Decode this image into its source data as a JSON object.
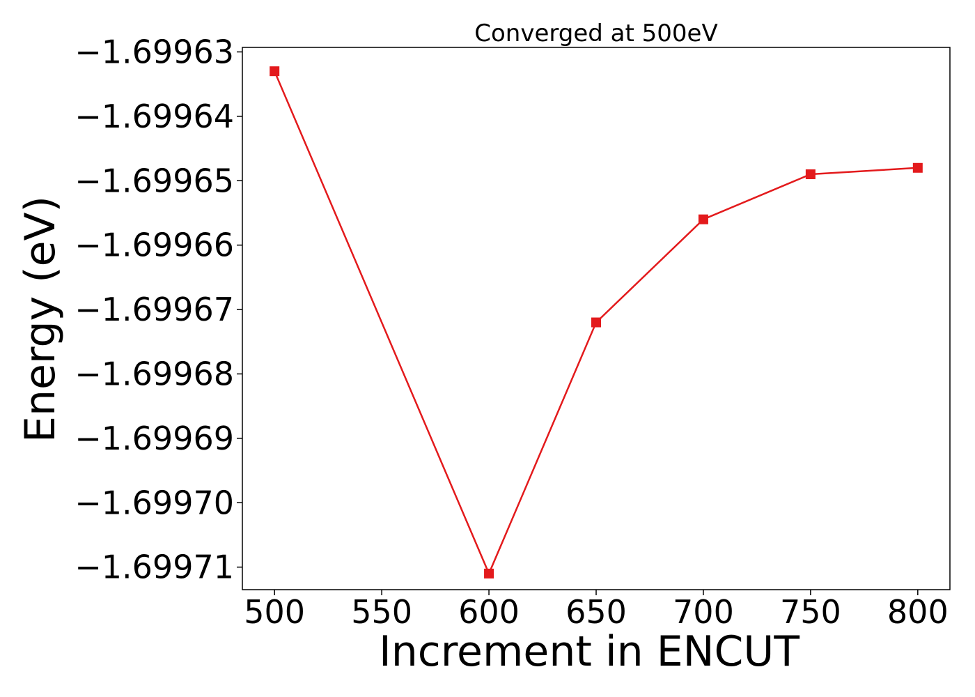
{
  "chart_data": {
    "type": "line",
    "title": "Converged at 500eV",
    "xlabel": "Increment in ENCUT",
    "ylabel": "Energy (eV)",
    "x": [
      500,
      600,
      650,
      700,
      750,
      800
    ],
    "series": [
      {
        "values": [
          -1.699633,
          -1.699711,
          -1.699672,
          -1.699656,
          -1.699649,
          -1.699648
        ],
        "color": "#e31a1c",
        "marker": "square"
      }
    ],
    "xlim": [
      485,
      815
    ],
    "ylim": [
      -1.6997135,
      -1.6996293
    ],
    "xticks": [
      500,
      550,
      600,
      650,
      700,
      750,
      800
    ],
    "xtick_labels": [
      "500",
      "550",
      "600",
      "650",
      "700",
      "750",
      "800"
    ],
    "yticks": [
      -1.69963,
      -1.69964,
      -1.69965,
      -1.69966,
      -1.69967,
      -1.69968,
      -1.69969,
      -1.6997,
      -1.69971
    ],
    "ytick_labels": [
      "−1.69963",
      "−1.69964",
      "−1.69965",
      "−1.69966",
      "−1.69967",
      "−1.69968",
      "−1.69969",
      "−1.69970",
      "−1.69971"
    ],
    "grid": false,
    "legend": "none"
  }
}
